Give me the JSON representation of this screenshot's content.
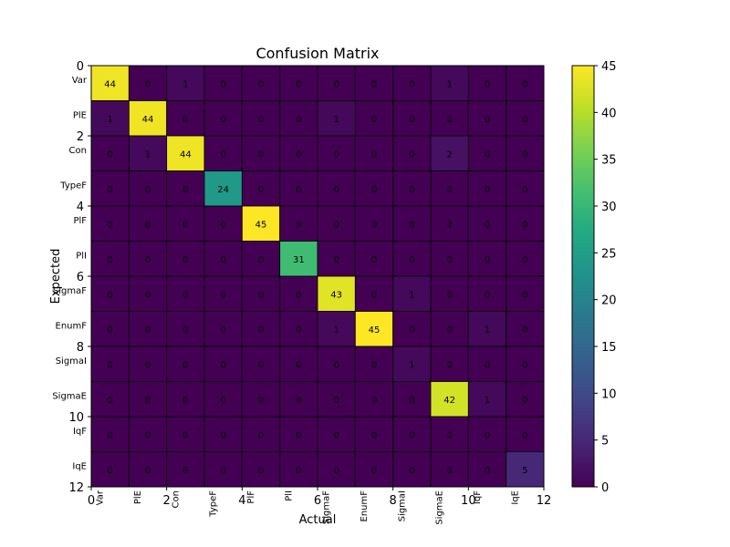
{
  "chart_data": {
    "type": "heatmap",
    "title": "Confusion Matrix",
    "xlabel": "Actual",
    "ylabel": "Expected",
    "categories": [
      "Var",
      "PlE",
      "Con",
      "TypeF",
      "PlF",
      "PlI",
      "SigmaF",
      "EnumF",
      "SigmaI",
      "SigmaE",
      "IqF",
      "IqE"
    ],
    "numeric_ticks": [
      "0",
      "2",
      "4",
      "6",
      "8",
      "10",
      "12"
    ],
    "matrix": [
      [
        44,
        0,
        1,
        0,
        0,
        0,
        0,
        0,
        0,
        1,
        0,
        0
      ],
      [
        1,
        44,
        0,
        0,
        0,
        0,
        1,
        0,
        0,
        0,
        0,
        0
      ],
      [
        0,
        1,
        44,
        0,
        0,
        0,
        0,
        0,
        0,
        2,
        0,
        0
      ],
      [
        0,
        0,
        0,
        24,
        0,
        0,
        0,
        0,
        0,
        0,
        0,
        0
      ],
      [
        0,
        0,
        0,
        0,
        45,
        0,
        0,
        0,
        0,
        0,
        0,
        0
      ],
      [
        0,
        0,
        0,
        0,
        0,
        31,
        0,
        0,
        0,
        0,
        0,
        0
      ],
      [
        0,
        0,
        0,
        0,
        0,
        0,
        43,
        0,
        1,
        0,
        0,
        0
      ],
      [
        0,
        0,
        0,
        0,
        0,
        0,
        1,
        45,
        0,
        0,
        1,
        0
      ],
      [
        0,
        0,
        0,
        0,
        0,
        0,
        0,
        0,
        1,
        0,
        0,
        0
      ],
      [
        0,
        0,
        0,
        0,
        0,
        0,
        0,
        0,
        0,
        42,
        1,
        0
      ],
      [
        0,
        0,
        0,
        0,
        0,
        0,
        0,
        0,
        0,
        0,
        0,
        0
      ],
      [
        0,
        0,
        0,
        0,
        0,
        0,
        0,
        0,
        0,
        0,
        0,
        5
      ]
    ],
    "colorbar": {
      "colormap": "viridis",
      "range": [
        0,
        45
      ],
      "ticks": [
        "0",
        "5",
        "10",
        "15",
        "20",
        "25",
        "30",
        "35",
        "40",
        "45"
      ]
    },
    "xlim": [
      0,
      12
    ],
    "ylim": [
      12,
      0
    ],
    "grid": false
  }
}
